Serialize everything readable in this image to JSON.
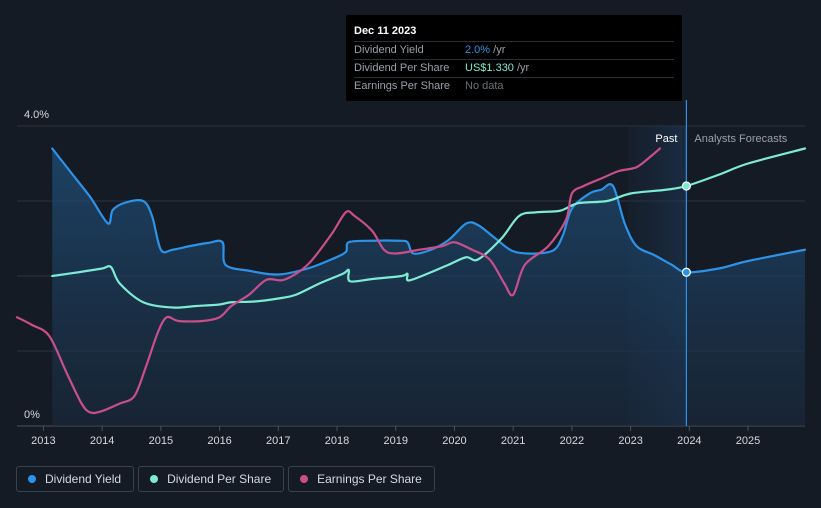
{
  "tooltip": {
    "date": "Dec 11 2023",
    "rows": [
      {
        "label": "Dividend Yield",
        "value": "2.0%",
        "unit": " /yr"
      },
      {
        "label": "Dividend Per Share",
        "value": "US$1.330",
        "unit": " /yr"
      },
      {
        "label": "Earnings Per Share",
        "value": "No data",
        "unit": ""
      }
    ]
  },
  "labels": {
    "past": "Past",
    "forecast": "Analysts Forecasts"
  },
  "legend": [
    {
      "label": "Dividend Yield",
      "color": "#2d93e8"
    },
    {
      "label": "Dividend Per Share",
      "color": "#7eebd3"
    },
    {
      "label": "Earnings Per Share",
      "color": "#c84f8c"
    }
  ],
  "chart_data": {
    "type": "line",
    "x_ticks": [
      "2013",
      "2014",
      "2015",
      "2016",
      "2017",
      "2018",
      "2019",
      "2020",
      "2021",
      "2022",
      "2023",
      "2024",
      "2025"
    ],
    "y_ticks": [
      "4.0%",
      "0%"
    ],
    "ylim": [
      0,
      4.0
    ],
    "xlim": [
      2012.55,
      2025.97
    ],
    "past_range": [
      2022.95,
      2023.95
    ],
    "highlight_date": 2023.95,
    "series": [
      {
        "name": "Dividend Yield",
        "color": "#2d93e8",
        "area": true,
        "points": [
          [
            2013.15,
            3.7
          ],
          [
            2013.5,
            3.35
          ],
          [
            2013.8,
            3.05
          ],
          [
            2014.1,
            2.7
          ],
          [
            2014.18,
            2.88
          ],
          [
            2014.4,
            2.98
          ],
          [
            2014.7,
            3.0
          ],
          [
            2014.85,
            2.8
          ],
          [
            2015.0,
            2.35
          ],
          [
            2015.2,
            2.35
          ],
          [
            2015.5,
            2.4
          ],
          [
            2015.8,
            2.44
          ],
          [
            2016.05,
            2.45
          ],
          [
            2016.1,
            2.15
          ],
          [
            2016.5,
            2.07
          ],
          [
            2017.0,
            2.02
          ],
          [
            2017.5,
            2.1
          ],
          [
            2017.9,
            2.22
          ],
          [
            2018.15,
            2.32
          ],
          [
            2018.2,
            2.45
          ],
          [
            2018.6,
            2.47
          ],
          [
            2019.05,
            2.47
          ],
          [
            2019.2,
            2.45
          ],
          [
            2019.3,
            2.3
          ],
          [
            2019.6,
            2.35
          ],
          [
            2019.9,
            2.48
          ],
          [
            2020.2,
            2.7
          ],
          [
            2020.4,
            2.68
          ],
          [
            2020.7,
            2.5
          ],
          [
            2021.0,
            2.33
          ],
          [
            2021.4,
            2.3
          ],
          [
            2021.7,
            2.35
          ],
          [
            2021.85,
            2.55
          ],
          [
            2022.0,
            2.9
          ],
          [
            2022.3,
            3.1
          ],
          [
            2022.5,
            3.15
          ],
          [
            2022.7,
            3.2
          ],
          [
            2022.9,
            2.7
          ],
          [
            2023.1,
            2.4
          ],
          [
            2023.4,
            2.28
          ],
          [
            2023.7,
            2.15
          ],
          [
            2023.95,
            2.05
          ],
          [
            2024.5,
            2.1
          ],
          [
            2025.0,
            2.2
          ],
          [
            2025.97,
            2.35
          ]
        ]
      },
      {
        "name": "Dividend Per Share",
        "color": "#7eebd3",
        "area": false,
        "points": [
          [
            2013.15,
            2.0
          ],
          [
            2013.6,
            2.05
          ],
          [
            2014.0,
            2.1
          ],
          [
            2014.15,
            2.12
          ],
          [
            2014.3,
            1.9
          ],
          [
            2014.7,
            1.65
          ],
          [
            2015.2,
            1.58
          ],
          [
            2015.6,
            1.6
          ],
          [
            2016.0,
            1.62
          ],
          [
            2016.2,
            1.65
          ],
          [
            2016.6,
            1.66
          ],
          [
            2017.0,
            1.7
          ],
          [
            2017.3,
            1.75
          ],
          [
            2017.7,
            1.9
          ],
          [
            2018.1,
            2.03
          ],
          [
            2018.2,
            2.08
          ],
          [
            2018.22,
            1.93
          ],
          [
            2018.6,
            1.96
          ],
          [
            2019.1,
            2.0
          ],
          [
            2019.2,
            2.03
          ],
          [
            2019.22,
            1.94
          ],
          [
            2019.6,
            2.05
          ],
          [
            2019.9,
            2.15
          ],
          [
            2020.2,
            2.25
          ],
          [
            2020.4,
            2.22
          ],
          [
            2020.8,
            2.5
          ],
          [
            2021.1,
            2.8
          ],
          [
            2021.4,
            2.85
          ],
          [
            2021.8,
            2.87
          ],
          [
            2022.1,
            2.97
          ],
          [
            2022.6,
            3.0
          ],
          [
            2023.0,
            3.1
          ],
          [
            2023.6,
            3.15
          ],
          [
            2023.95,
            3.2
          ],
          [
            2024.5,
            3.35
          ],
          [
            2025.0,
            3.5
          ],
          [
            2025.97,
            3.7
          ]
        ]
      },
      {
        "name": "Earnings Per Share",
        "color": "#c84f8c",
        "area": false,
        "points": [
          [
            2012.55,
            1.45
          ],
          [
            2012.8,
            1.35
          ],
          [
            2013.1,
            1.2
          ],
          [
            2013.4,
            0.7
          ],
          [
            2013.65,
            0.3
          ],
          [
            2013.8,
            0.18
          ],
          [
            2014.0,
            0.2
          ],
          [
            2014.3,
            0.3
          ],
          [
            2014.55,
            0.4
          ],
          [
            2014.75,
            0.8
          ],
          [
            2014.95,
            1.25
          ],
          [
            2015.1,
            1.45
          ],
          [
            2015.3,
            1.4
          ],
          [
            2015.7,
            1.4
          ],
          [
            2016.0,
            1.45
          ],
          [
            2016.2,
            1.6
          ],
          [
            2016.5,
            1.75
          ],
          [
            2016.8,
            1.95
          ],
          [
            2017.1,
            1.95
          ],
          [
            2017.5,
            2.15
          ],
          [
            2017.9,
            2.55
          ],
          [
            2018.15,
            2.85
          ],
          [
            2018.3,
            2.8
          ],
          [
            2018.6,
            2.6
          ],
          [
            2018.8,
            2.35
          ],
          [
            2019.0,
            2.3
          ],
          [
            2019.4,
            2.35
          ],
          [
            2019.8,
            2.4
          ],
          [
            2020.0,
            2.45
          ],
          [
            2020.3,
            2.35
          ],
          [
            2020.6,
            2.22
          ],
          [
            2020.85,
            1.9
          ],
          [
            2021.0,
            1.75
          ],
          [
            2021.2,
            2.15
          ],
          [
            2021.6,
            2.4
          ],
          [
            2021.9,
            2.75
          ],
          [
            2022.0,
            3.1
          ],
          [
            2022.2,
            3.2
          ],
          [
            2022.5,
            3.3
          ],
          [
            2022.8,
            3.4
          ],
          [
            2023.1,
            3.45
          ],
          [
            2023.35,
            3.6
          ],
          [
            2023.5,
            3.7
          ]
        ]
      }
    ]
  }
}
